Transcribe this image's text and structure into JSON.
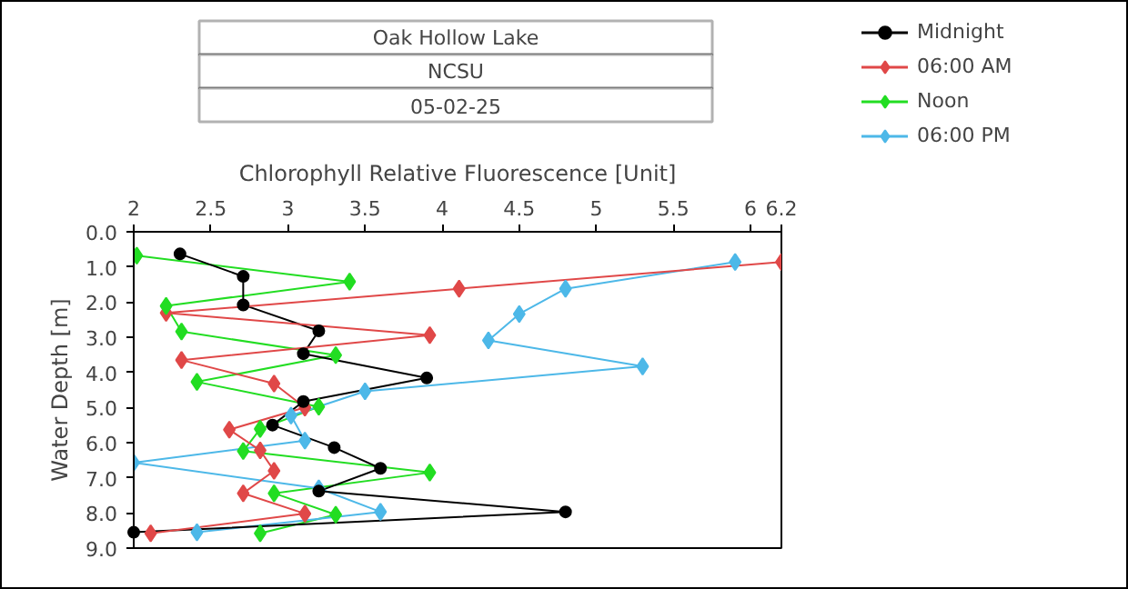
{
  "chart_data": {
    "type": "line",
    "title": "Oak Hollow Lake",
    "subtitle": "NCSU",
    "annotations": [
      "05-02-25"
    ],
    "xlabel": "Chlorophyll Relative Fluorescence [Unit]",
    "ylabel": "Water Depth [m]",
    "xlim": [
      2,
      6.2
    ],
    "xticks": [
      2,
      2.5,
      3,
      3.5,
      4,
      4.5,
      5,
      5.5,
      6,
      6.2
    ],
    "ylim": [
      9,
      0
    ],
    "yticks": [
      {
        "value": 0,
        "label": "0.0"
      },
      {
        "value": 1,
        "label": "1.0"
      },
      {
        "value": 2,
        "label": "2.0"
      },
      {
        "value": 3,
        "label": "3.0"
      },
      {
        "value": 4,
        "label": "4.0"
      },
      {
        "value": 5,
        "label": "5.0"
      },
      {
        "value": 6,
        "label": "6.0"
      },
      {
        "value": 7,
        "label": "7.0"
      },
      {
        "value": 8,
        "label": "8.0"
      },
      {
        "value": 9,
        "label": "9.0"
      }
    ],
    "grid": false,
    "legend": "top right",
    "series": [
      {
        "name": "Midnight",
        "color": "#000000",
        "marker": "circle",
        "x": [
          2.3,
          2.71,
          2.71,
          3.2,
          3.1,
          3.9,
          3.1,
          2.9,
          3.3,
          3.6,
          3.2,
          4.8,
          2.0
        ],
        "values": [
          0.63,
          1.27,
          2.08,
          2.82,
          3.47,
          4.16,
          4.83,
          5.5,
          6.14,
          6.73,
          7.38,
          7.97,
          8.55
        ]
      },
      {
        "name": "06:00 AM",
        "color": "#e04848",
        "marker": "diamond",
        "x": [
          6.2,
          4.11,
          2.21,
          3.92,
          2.31,
          2.91,
          3.11,
          2.62,
          2.82,
          2.91,
          2.71,
          3.11,
          2.11
        ],
        "values": [
          0.86,
          1.62,
          2.31,
          2.94,
          3.65,
          4.32,
          5.0,
          5.63,
          6.22,
          6.8,
          7.44,
          8.02,
          8.58
        ]
      },
      {
        "name": "Noon",
        "color": "#22dd22",
        "marker": "diamond",
        "x": [
          2.02,
          3.4,
          2.21,
          2.31,
          3.31,
          2.41,
          3.2,
          2.82,
          2.71,
          3.92,
          2.91,
          3.31,
          2.82
        ],
        "values": [
          0.68,
          1.42,
          2.11,
          2.84,
          3.51,
          4.27,
          4.98,
          5.61,
          6.24,
          6.85,
          7.44,
          8.05,
          8.58
        ]
      },
      {
        "name": "06:00 PM",
        "color": "#4db8e8",
        "marker": "diamond",
        "x": [
          5.9,
          4.8,
          4.5,
          4.3,
          5.3,
          3.5,
          3.02,
          3.11,
          2.0,
          3.2,
          3.6,
          2.41
        ],
        "values": [
          0.86,
          1.62,
          2.34,
          3.09,
          3.83,
          4.54,
          5.23,
          5.94,
          6.57,
          7.3,
          7.97,
          8.55
        ]
      }
    ]
  }
}
